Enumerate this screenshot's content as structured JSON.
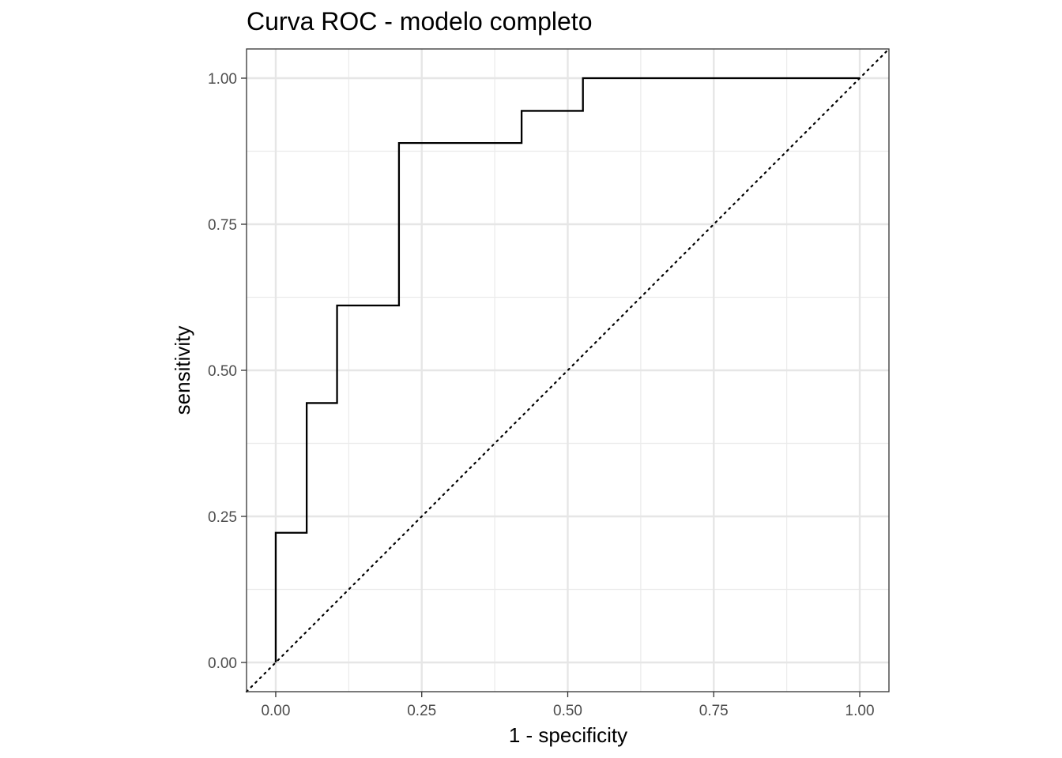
{
  "chart_data": {
    "type": "line",
    "title": "Curva ROC - modelo completo",
    "xlabel": "1 - specificity",
    "ylabel": "sensitivity",
    "xlim": [
      -0.05,
      1.05
    ],
    "ylim": [
      -0.05,
      1.05
    ],
    "x_ticks": [
      0,
      0.25,
      0.5,
      0.75,
      1
    ],
    "x_tick_labels": [
      "0.00",
      "0.25",
      "0.50",
      "0.75",
      "1.00"
    ],
    "y_ticks": [
      0,
      0.25,
      0.5,
      0.75,
      1
    ],
    "y_tick_labels": [
      "0.00",
      "0.25",
      "0.50",
      "0.75",
      "1.00"
    ],
    "grid": true,
    "series": [
      {
        "style": "step",
        "color": "#000000",
        "x": [
          0,
          0,
          0.053,
          0.053,
          0.105,
          0.105,
          0.211,
          0.211,
          0.421,
          0.421,
          0.526,
          0.526,
          1
        ],
        "y": [
          0,
          0.222,
          0.222,
          0.444,
          0.444,
          0.611,
          0.611,
          0.889,
          0.889,
          0.944,
          0.944,
          1,
          1
        ]
      }
    ],
    "reference_line": {
      "style": "dotted",
      "color": "#000000",
      "x": [
        -0.05,
        1.05
      ],
      "y": [
        -0.05,
        1.05
      ]
    }
  }
}
